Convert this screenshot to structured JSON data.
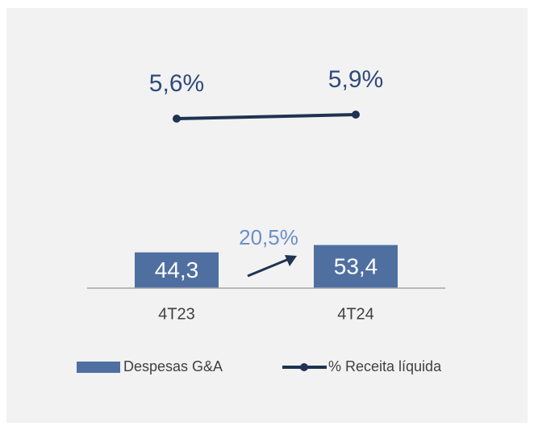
{
  "chart_data": {
    "type": "bar",
    "categories": [
      "4T23",
      "4T24"
    ],
    "series": [
      {
        "name": "Despesas G&A",
        "type": "bar",
        "color": "#4f6fa1",
        "values": [
          44.3,
          53.4
        ],
        "value_labels": [
          "44,3",
          "53,4"
        ]
      },
      {
        "name": "% Receita líquida",
        "type": "line",
        "axis": "y2",
        "color": "#1f3352",
        "values": [
          5.6,
          5.9
        ],
        "value_labels": [
          "5,6%",
          "5,9%"
        ]
      }
    ],
    "ylim": [
      0,
      300
    ],
    "y2lim": [
      -7,
      11
    ],
    "annotation": "20,5%",
    "legend": "bottom"
  }
}
